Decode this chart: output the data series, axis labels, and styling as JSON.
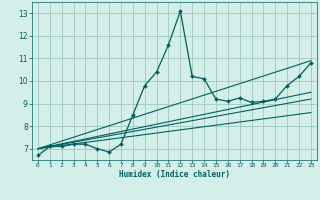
{
  "xlabel": "Humidex (Indice chaleur)",
  "bg_color": "#d4eeea",
  "grid_color": "#a0c8c0",
  "line_color": "#006060",
  "xlim": [
    -0.5,
    23.5
  ],
  "ylim": [
    6.5,
    13.5
  ],
  "xticks": [
    0,
    1,
    2,
    3,
    4,
    5,
    6,
    7,
    8,
    9,
    10,
    11,
    12,
    13,
    14,
    15,
    16,
    17,
    18,
    19,
    20,
    21,
    22,
    23
  ],
  "yticks": [
    7,
    8,
    9,
    10,
    11,
    12,
    13
  ],
  "main_x": [
    0,
    1,
    2,
    3,
    4,
    5,
    6,
    7,
    8,
    9,
    10,
    11,
    12,
    13,
    14,
    15,
    16,
    17,
    18,
    19,
    20,
    21,
    22,
    23
  ],
  "main_y": [
    6.7,
    7.1,
    7.1,
    7.2,
    7.2,
    7.0,
    6.85,
    7.2,
    8.5,
    9.8,
    10.4,
    11.6,
    13.1,
    10.2,
    10.1,
    9.2,
    9.1,
    9.25,
    9.05,
    9.1,
    9.2,
    9.8,
    10.2,
    10.8
  ],
  "line1_x": [
    0,
    23
  ],
  "line1_y": [
    7.0,
    10.9
  ],
  "line2_x": [
    0,
    23
  ],
  "line2_y": [
    7.0,
    9.5
  ],
  "line3_x": [
    0,
    23
  ],
  "line3_y": [
    7.0,
    9.2
  ],
  "line4_x": [
    0,
    23
  ],
  "line4_y": [
    7.0,
    8.6
  ]
}
